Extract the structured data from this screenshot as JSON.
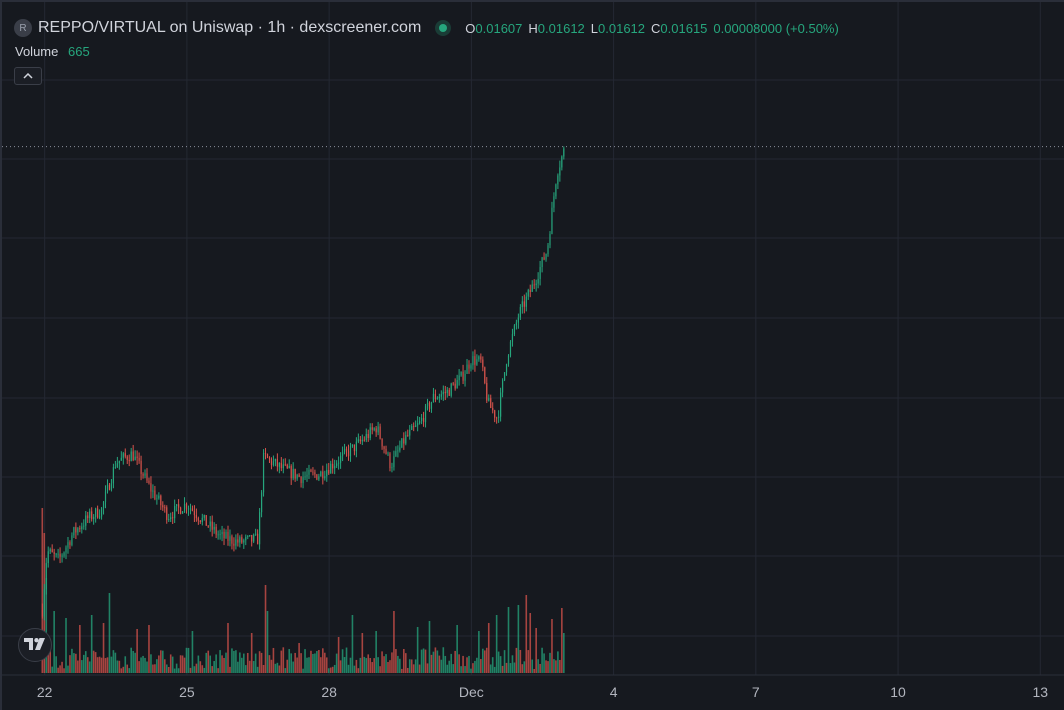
{
  "header": {
    "symbol_logo": "R",
    "title": "REPPO/VIRTUAL on Uniswap · 1h · dexscreener.com",
    "status_icon": "market-open-dot",
    "ohlc": {
      "o_label": "O",
      "o_value": "0.01607",
      "h_label": "H",
      "h_value": "0.01612",
      "l_label": "L",
      "l_value": "0.01612",
      "c_label": "C",
      "c_value": "0.01615"
    },
    "change": "0.00008000 (+0.50%)"
  },
  "volume_legend": {
    "label": "Volume",
    "value": "665"
  },
  "colors": {
    "background": "#16191f",
    "grid": "#242833",
    "up": "#26a67d",
    "down": "#d8534c",
    "text": "#d1d4dc",
    "axis_text": "#b2b5be"
  },
  "icons": {
    "collapse": "chevron-up-icon",
    "brand": "tradingview-logo-icon"
  },
  "chart_data": {
    "type": "candlestick",
    "interval": "1h",
    "x_tick_labels": [
      "22",
      "25",
      "28",
      "Dec",
      "4",
      "7",
      "10",
      "13"
    ],
    "x_tick_days": [
      22,
      25,
      28,
      31,
      34,
      37,
      40,
      43
    ],
    "x_range_days": [
      21.1,
      43.5
    ],
    "y_range": [
      0.0072,
      0.0186
    ],
    "grid": true,
    "last_price_line": 0.01615,
    "anchors": [
      [
        21.95,
        0.0083
      ],
      [
        22.05,
        0.0093
      ],
      [
        22.3,
        0.00915
      ],
      [
        22.6,
        0.0096
      ],
      [
        22.9,
        0.00985
      ],
      [
        23.2,
        0.01
      ],
      [
        23.5,
        0.0108
      ],
      [
        23.85,
        0.01095
      ],
      [
        24.2,
        0.0104
      ],
      [
        24.6,
        0.0099
      ],
      [
        25.0,
        0.0101
      ],
      [
        25.3,
        0.00985
      ],
      [
        25.7,
        0.00955
      ],
      [
        26.1,
        0.00945
      ],
      [
        26.5,
        0.0095
      ],
      [
        26.62,
        0.0109
      ],
      [
        27.0,
        0.0107
      ],
      [
        27.4,
        0.01055
      ],
      [
        27.8,
        0.0106
      ],
      [
        28.2,
        0.01085
      ],
      [
        28.6,
        0.0111
      ],
      [
        29.0,
        0.0114
      ],
      [
        29.3,
        0.01075
      ],
      [
        29.6,
        0.0112
      ],
      [
        29.9,
        0.01145
      ],
      [
        30.2,
        0.0119
      ],
      [
        30.5,
        0.012
      ],
      [
        30.8,
        0.01225
      ],
      [
        31.0,
        0.01255
      ],
      [
        31.2,
        0.0125
      ],
      [
        31.35,
        0.0118
      ],
      [
        31.55,
        0.01155
      ],
      [
        31.75,
        0.0126
      ],
      [
        32.0,
        0.0133
      ],
      [
        32.3,
        0.0138
      ],
      [
        32.6,
        0.0144
      ],
      [
        32.8,
        0.0157
      ],
      [
        32.98,
        0.01615
      ]
    ],
    "volume_spikes": [
      [
        21.95,
        165
      ],
      [
        22.0,
        140
      ],
      [
        22.05,
        95
      ],
      [
        21.98,
        120
      ],
      [
        22.2,
        62
      ],
      [
        22.45,
        55
      ],
      [
        22.75,
        48
      ],
      [
        23.0,
        58
      ],
      [
        23.25,
        50
      ],
      [
        23.35,
        80
      ],
      [
        23.95,
        44
      ],
      [
        24.2,
        48
      ],
      [
        25.1,
        42
      ],
      [
        25.85,
        50
      ],
      [
        26.35,
        40
      ],
      [
        26.65,
        88
      ],
      [
        26.7,
        62
      ],
      [
        27.35,
        30
      ],
      [
        28.2,
        36
      ],
      [
        28.5,
        58
      ],
      [
        28.7,
        40
      ],
      [
        29.0,
        42
      ],
      [
        29.35,
        62
      ],
      [
        29.85,
        46
      ],
      [
        30.1,
        52
      ],
      [
        30.7,
        48
      ],
      [
        31.15,
        42
      ],
      [
        31.35,
        50
      ],
      [
        31.55,
        58
      ],
      [
        31.8,
        66
      ],
      [
        32.0,
        68
      ],
      [
        32.15,
        78
      ],
      [
        32.25,
        60
      ],
      [
        32.35,
        45
      ],
      [
        32.7,
        54
      ],
      [
        32.9,
        65
      ],
      [
        32.97,
        40
      ]
    ],
    "volume_max": 170
  }
}
